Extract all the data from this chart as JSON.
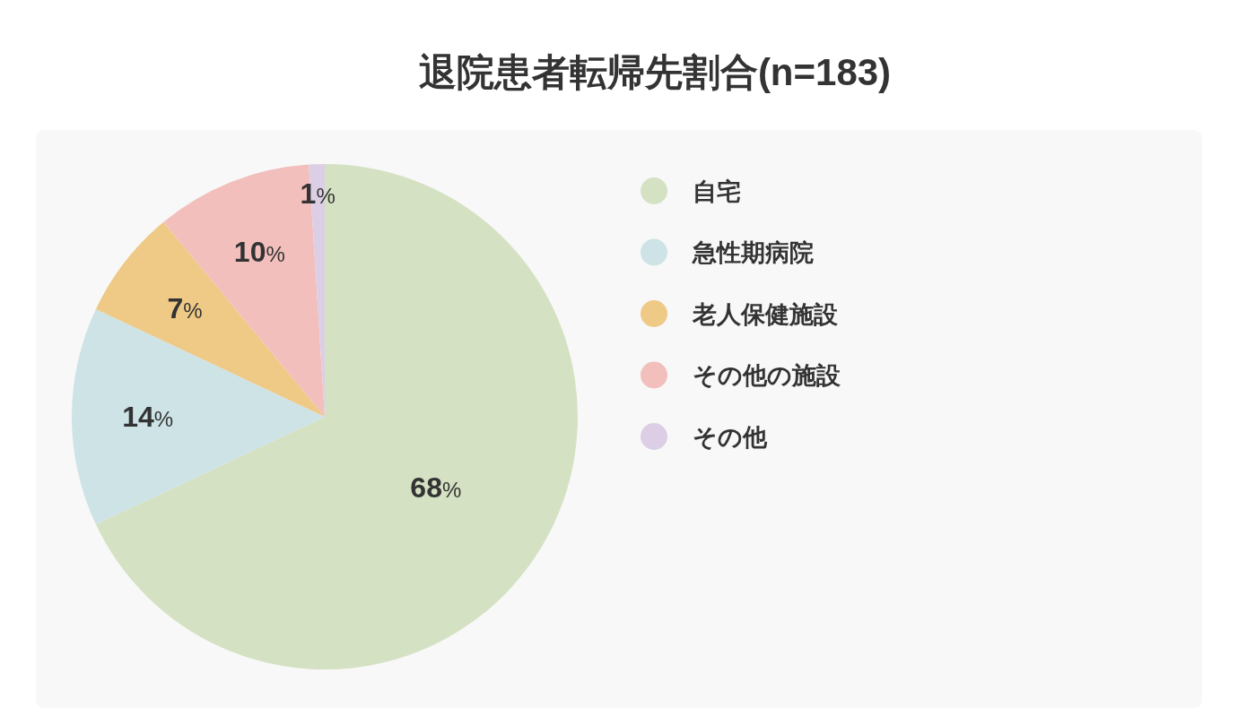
{
  "chart_data": {
    "type": "pie",
    "title": "退院患者転帰先割合(n=183)",
    "categories": [
      "自宅",
      "急性期病院",
      "老人保健施設",
      "その他の施設",
      "その他"
    ],
    "values": [
      68,
      14,
      7,
      10,
      1
    ],
    "colors": [
      "#d5e1c3",
      "#cde3e6",
      "#efca87",
      "#f2bfbd",
      "#dccfe5"
    ],
    "value_labels": [
      "68%",
      "14%",
      "7%",
      "10%",
      "1%"
    ],
    "legend": "right"
  }
}
